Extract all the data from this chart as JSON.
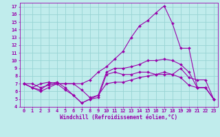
{
  "bg_color": "#c0ecec",
  "grid_color": "#98d4d4",
  "line_color": "#9900aa",
  "xlabel": "Windchill (Refroidissement éolien,°C)",
  "xlim": [
    -0.5,
    23.5
  ],
  "ylim": [
    4,
    17.5
  ],
  "xticks": [
    0,
    1,
    2,
    3,
    4,
    5,
    6,
    7,
    8,
    9,
    10,
    11,
    12,
    13,
    14,
    15,
    16,
    17,
    18,
    19,
    20,
    21,
    22,
    23
  ],
  "yticks": [
    4,
    5,
    6,
    7,
    8,
    9,
    10,
    11,
    12,
    13,
    14,
    15,
    16,
    17
  ],
  "lines": [
    {
      "x": [
        0,
        1,
        2,
        3,
        4,
        5,
        6,
        7,
        8,
        9,
        10,
        11,
        12,
        13,
        14,
        15,
        16,
        17,
        18,
        19,
        20,
        21,
        22,
        23
      ],
      "y": [
        7.0,
        6.5,
        6.0,
        6.5,
        7.0,
        7.0,
        7.0,
        7.0,
        7.5,
        8.5,
        9.2,
        10.2,
        11.2,
        13.0,
        14.5,
        15.2,
        16.2,
        17.1,
        14.8,
        11.6,
        11.6,
        6.5,
        6.5,
        5.0
      ]
    },
    {
      "x": [
        0,
        1,
        2,
        3,
        4,
        5,
        6,
        7,
        8,
        9,
        10,
        11,
        12,
        13,
        14,
        15,
        16,
        17,
        18,
        19,
        20,
        21,
        22,
        23
      ],
      "y": [
        7.0,
        6.5,
        6.2,
        7.0,
        7.2,
        6.5,
        5.5,
        4.5,
        5.0,
        5.2,
        8.2,
        8.5,
        8.2,
        8.2,
        8.5,
        8.5,
        8.2,
        8.5,
        8.2,
        9.0,
        7.8,
        7.5,
        7.5,
        5.0
      ]
    },
    {
      "x": [
        0,
        1,
        2,
        3,
        4,
        5,
        6,
        7,
        8,
        9,
        10,
        11,
        12,
        13,
        14,
        15,
        16,
        17,
        18,
        19,
        20,
        21,
        22,
        23
      ],
      "y": [
        7.0,
        6.5,
        7.0,
        7.2,
        7.0,
        6.2,
        5.5,
        4.5,
        5.0,
        5.5,
        8.5,
        9.0,
        9.0,
        9.2,
        9.5,
        10.0,
        10.0,
        10.2,
        10.0,
        9.5,
        8.5,
        6.5,
        6.5,
        5.0
      ]
    },
    {
      "x": [
        0,
        1,
        2,
        3,
        4,
        5,
        6,
        7,
        8,
        9,
        10,
        11,
        12,
        13,
        14,
        15,
        16,
        17,
        18,
        19,
        20,
        21,
        22,
        23
      ],
      "y": [
        7.0,
        7.0,
        6.5,
        6.8,
        7.0,
        7.0,
        7.0,
        6.2,
        5.2,
        5.5,
        7.0,
        7.2,
        7.2,
        7.5,
        7.8,
        8.0,
        8.2,
        8.2,
        8.2,
        7.8,
        6.8,
        6.5,
        6.5,
        5.0
      ]
    }
  ],
  "tick_fontsize": 5.0,
  "label_fontsize": 5.5
}
